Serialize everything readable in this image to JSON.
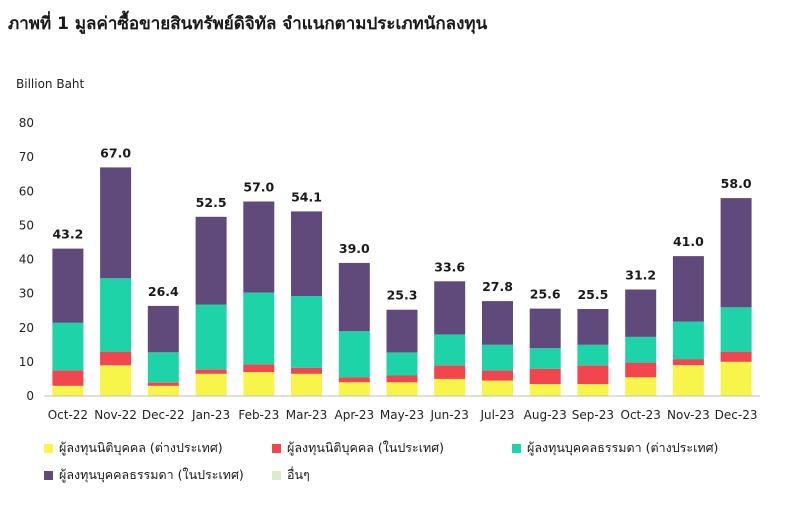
{
  "title": "ภาพที่ 1 มูลค่าซื้อขายสินทรัพย์ดิจิทัล จำแนกตามประเภทนักลงทุน",
  "chart_data": {
    "type": "bar",
    "stacked": true,
    "title": "ภาพที่ 1 มูลค่าซื้อขายสินทรัพย์ดิจิทัล จำแนกตามประเภทนักลงทุน",
    "ylabel": "Billion Baht",
    "xlabel": "",
    "ylim": [
      0,
      80
    ],
    "yticks": [
      "0",
      "10",
      "20",
      "30",
      "40",
      "50",
      "60",
      "70",
      "80"
    ],
    "grid": false,
    "legend_position": "bottom",
    "categories": [
      "Oct-22",
      "Nov-22",
      "Dec-22",
      "Jan-23",
      "Feb-23",
      "Mar-23",
      "Apr-23",
      "May-23",
      "Jun-23",
      "Jul-23",
      "Aug-23",
      "Sep-23",
      "Oct-23",
      "Nov-23",
      "Dec-23"
    ],
    "totals": [
      "43.2",
      "67.0",
      "26.4",
      "52.5",
      "57.0",
      "54.1",
      "39.0",
      "25.3",
      "33.6",
      "27.8",
      "25.6",
      "25.5",
      "31.2",
      "41.0",
      "58.0"
    ],
    "series": [
      {
        "name": "ผู้ลงทุนนิติบุคคล (ต่างประเทศ)",
        "color": "#f7f54a",
        "values": [
          3.0,
          9.0,
          3.0,
          6.5,
          7.0,
          6.5,
          4.0,
          4.0,
          5.0,
          4.5,
          3.5,
          3.5,
          5.5,
          9.0,
          10.0
        ]
      },
      {
        "name": "ผู้ลงทุนนิติบุคคล (ในประเทศ)",
        "color": "#f2464e",
        "values": [
          4.5,
          4.0,
          1.0,
          1.3,
          2.3,
          1.8,
          1.5,
          2.0,
          4.0,
          3.0,
          4.5,
          5.5,
          4.3,
          1.8,
          3.0
        ]
      },
      {
        "name": "ผู้ลงทุนบุคคลธรรมดา (ต่างประเทศ)",
        "color": "#1dd3a7",
        "values": [
          14.0,
          21.5,
          8.8,
          19.0,
          21.0,
          21.0,
          13.5,
          6.8,
          9.0,
          7.5,
          6.0,
          6.0,
          7.5,
          11.0,
          13.0
        ]
      },
      {
        "name": "ผู้ลงทุนบุคคลธรรมดา (ในประเทศ)",
        "color": "#604a7b",
        "values": [
          21.7,
          32.5,
          13.6,
          25.7,
          26.7,
          24.8,
          20.0,
          12.5,
          15.6,
          12.8,
          11.6,
          10.5,
          13.9,
          19.2,
          32.0
        ]
      },
      {
        "name": "อื่นๆ",
        "color": "#d5efc8",
        "values": [
          0,
          0,
          0,
          0,
          0,
          0,
          0,
          0,
          0,
          0,
          0,
          0,
          0,
          0,
          0
        ]
      }
    ]
  }
}
